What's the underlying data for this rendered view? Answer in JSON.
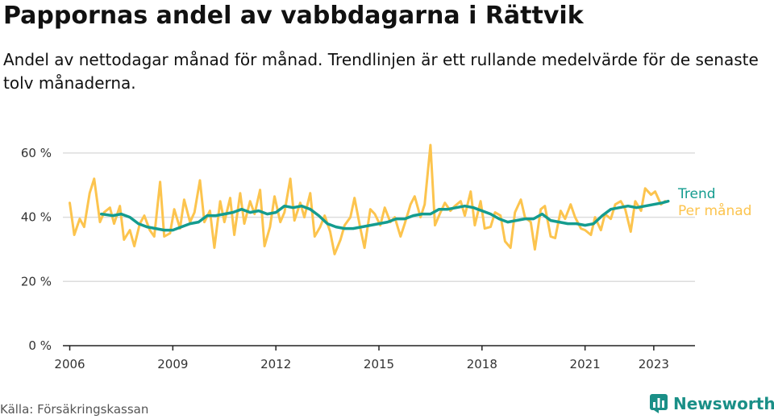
{
  "title": "Pappornas andel av vabbdagarna i Rättvik",
  "subtitle": "Andel av nettodagar månad för månad. Trendlinjen är ett rullande medelvärde för de senaste tolv månaderna.",
  "source": "Källa: Försäkringskassan",
  "brand": "Newsworthy",
  "colors": {
    "trend": "#149c8f",
    "monthly": "#fcc44e",
    "grid": "#dddddd",
    "axis": "#222222",
    "brand": "#1a8f87"
  },
  "chart_data": {
    "type": "line",
    "x_unit": "year (decimal)",
    "y_unit": "percent",
    "ylim": [
      0,
      65
    ],
    "xlim": [
      2005.8,
      2024.2
    ],
    "yticks": [
      {
        "value": 0,
        "label": "0 %"
      },
      {
        "value": 20,
        "label": "20 %"
      },
      {
        "value": 40,
        "label": "40 %"
      },
      {
        "value": 60,
        "label": "60 %"
      }
    ],
    "xticks": [
      {
        "value": 2006,
        "label": "2006"
      },
      {
        "value": 2009,
        "label": "2009"
      },
      {
        "value": 2012,
        "label": "2012"
      },
      {
        "value": 2015,
        "label": "2015"
      },
      {
        "value": 2018,
        "label": "2018"
      },
      {
        "value": 2021,
        "label": "2021"
      },
      {
        "value": 2023,
        "label": "2023"
      }
    ],
    "grid": true,
    "legend": "right, at line ends",
    "series": [
      {
        "name": "Per månad",
        "color": "#fcc44e",
        "x": [
          2006.0,
          2006.13,
          2006.29,
          2006.42,
          2006.58,
          2006.71,
          2006.88,
          2007.0,
          2007.17,
          2007.29,
          2007.46,
          2007.58,
          2007.75,
          2007.88,
          2008.04,
          2008.17,
          2008.33,
          2008.46,
          2008.63,
          2008.75,
          2008.92,
          2009.04,
          2009.21,
          2009.33,
          2009.5,
          2009.63,
          2009.79,
          2009.92,
          2010.08,
          2010.21,
          2010.38,
          2010.5,
          2010.67,
          2010.79,
          2010.96,
          2011.08,
          2011.25,
          2011.38,
          2011.54,
          2011.67,
          2011.83,
          2011.96,
          2012.13,
          2012.25,
          2012.42,
          2012.54,
          2012.71,
          2012.83,
          2013.0,
          2013.13,
          2013.29,
          2013.42,
          2013.58,
          2013.71,
          2013.88,
          2014.0,
          2014.17,
          2014.29,
          2014.46,
          2014.58,
          2014.75,
          2014.88,
          2015.04,
          2015.17,
          2015.33,
          2015.46,
          2015.63,
          2015.75,
          2015.92,
          2016.04,
          2016.21,
          2016.33,
          2016.5,
          2016.63,
          2016.79,
          2016.92,
          2017.08,
          2017.21,
          2017.38,
          2017.5,
          2017.67,
          2017.79,
          2017.96,
          2018.08,
          2018.25,
          2018.38,
          2018.54,
          2018.67,
          2018.83,
          2018.96,
          2019.13,
          2019.25,
          2019.42,
          2019.54,
          2019.71,
          2019.83,
          2020.0,
          2020.13,
          2020.29,
          2020.42,
          2020.58,
          2020.71,
          2020.88,
          2021.0,
          2021.17,
          2021.29,
          2021.46,
          2021.58,
          2021.75,
          2021.88,
          2022.04,
          2022.17,
          2022.33,
          2022.46,
          2022.63,
          2022.75,
          2022.92,
          2023.04,
          2023.21,
          2023.33
        ],
        "y": [
          44.5,
          34.5,
          39.5,
          37.0,
          47.5,
          52.0,
          38.5,
          41.5,
          43.0,
          38.0,
          43.5,
          33.0,
          36.0,
          31.0,
          38.0,
          40.5,
          36.0,
          34.0,
          51.0,
          34.0,
          35.0,
          42.5,
          36.5,
          45.5,
          38.5,
          41.5,
          51.5,
          38.5,
          42.0,
          30.5,
          45.0,
          38.5,
          46.0,
          34.5,
          47.5,
          38.0,
          45.0,
          41.0,
          48.5,
          31.0,
          37.0,
          46.5,
          38.5,
          41.5,
          52.0,
          39.0,
          44.5,
          40.0,
          47.5,
          34.0,
          37.0,
          40.5,
          35.5,
          28.5,
          33.0,
          37.5,
          40.0,
          46.0,
          36.5,
          30.5,
          42.5,
          41.0,
          37.5,
          43.0,
          38.5,
          40.0,
          34.0,
          38.0,
          44.0,
          46.5,
          40.0,
          44.0,
          62.5,
          37.5,
          41.5,
          44.5,
          42.0,
          43.5,
          45.0,
          40.5,
          48.0,
          37.5,
          45.0,
          36.5,
          37.0,
          41.5,
          40.5,
          32.5,
          30.5,
          41.5,
          45.5,
          40.0,
          38.5,
          30.0,
          42.5,
          43.5,
          34.0,
          33.5,
          42.0,
          39.5,
          44.0,
          40.0,
          36.5,
          36.0,
          34.5,
          40.0,
          36.0,
          41.0,
          39.5,
          44.0,
          45.0,
          42.5,
          35.5,
          45.0,
          42.0,
          49.0,
          47.0,
          48.0,
          44.0,
          45.0
        ]
      },
      {
        "name": "Trend",
        "color": "#149c8f",
        "x": [
          2006.92,
          2007.25,
          2007.5,
          2007.75,
          2008.0,
          2008.25,
          2008.5,
          2008.75,
          2009.0,
          2009.25,
          2009.5,
          2009.75,
          2010.0,
          2010.25,
          2010.5,
          2010.75,
          2011.0,
          2011.25,
          2011.5,
          2011.75,
          2012.0,
          2012.25,
          2012.5,
          2012.75,
          2013.0,
          2013.25,
          2013.5,
          2013.75,
          2014.0,
          2014.25,
          2014.5,
          2014.75,
          2015.0,
          2015.25,
          2015.5,
          2015.75,
          2016.0,
          2016.25,
          2016.5,
          2016.75,
          2017.0,
          2017.25,
          2017.5,
          2017.75,
          2018.0,
          2018.25,
          2018.5,
          2018.75,
          2019.0,
          2019.25,
          2019.5,
          2019.75,
          2020.0,
          2020.25,
          2020.5,
          2020.75,
          2021.0,
          2021.25,
          2021.5,
          2021.75,
          2022.0,
          2022.25,
          2022.5,
          2022.75,
          2023.0,
          2023.25,
          2023.42
        ],
        "y": [
          41.0,
          40.5,
          41.0,
          40.0,
          38.0,
          37.0,
          36.5,
          36.0,
          36.0,
          37.0,
          38.0,
          38.5,
          40.5,
          40.5,
          41.0,
          41.5,
          42.5,
          41.5,
          42.0,
          41.0,
          41.5,
          43.5,
          43.0,
          43.5,
          42.5,
          40.5,
          38.0,
          37.0,
          36.5,
          36.5,
          37.0,
          37.5,
          38.0,
          38.5,
          39.5,
          39.5,
          40.5,
          41.0,
          41.0,
          42.5,
          42.5,
          43.0,
          43.5,
          43.0,
          42.0,
          41.0,
          39.5,
          38.5,
          39.0,
          39.5,
          39.5,
          41.0,
          39.0,
          38.5,
          38.0,
          38.0,
          37.5,
          38.0,
          40.5,
          42.5,
          43.0,
          43.5,
          43.0,
          43.5,
          44.0,
          44.5,
          45.0
        ]
      }
    ]
  }
}
